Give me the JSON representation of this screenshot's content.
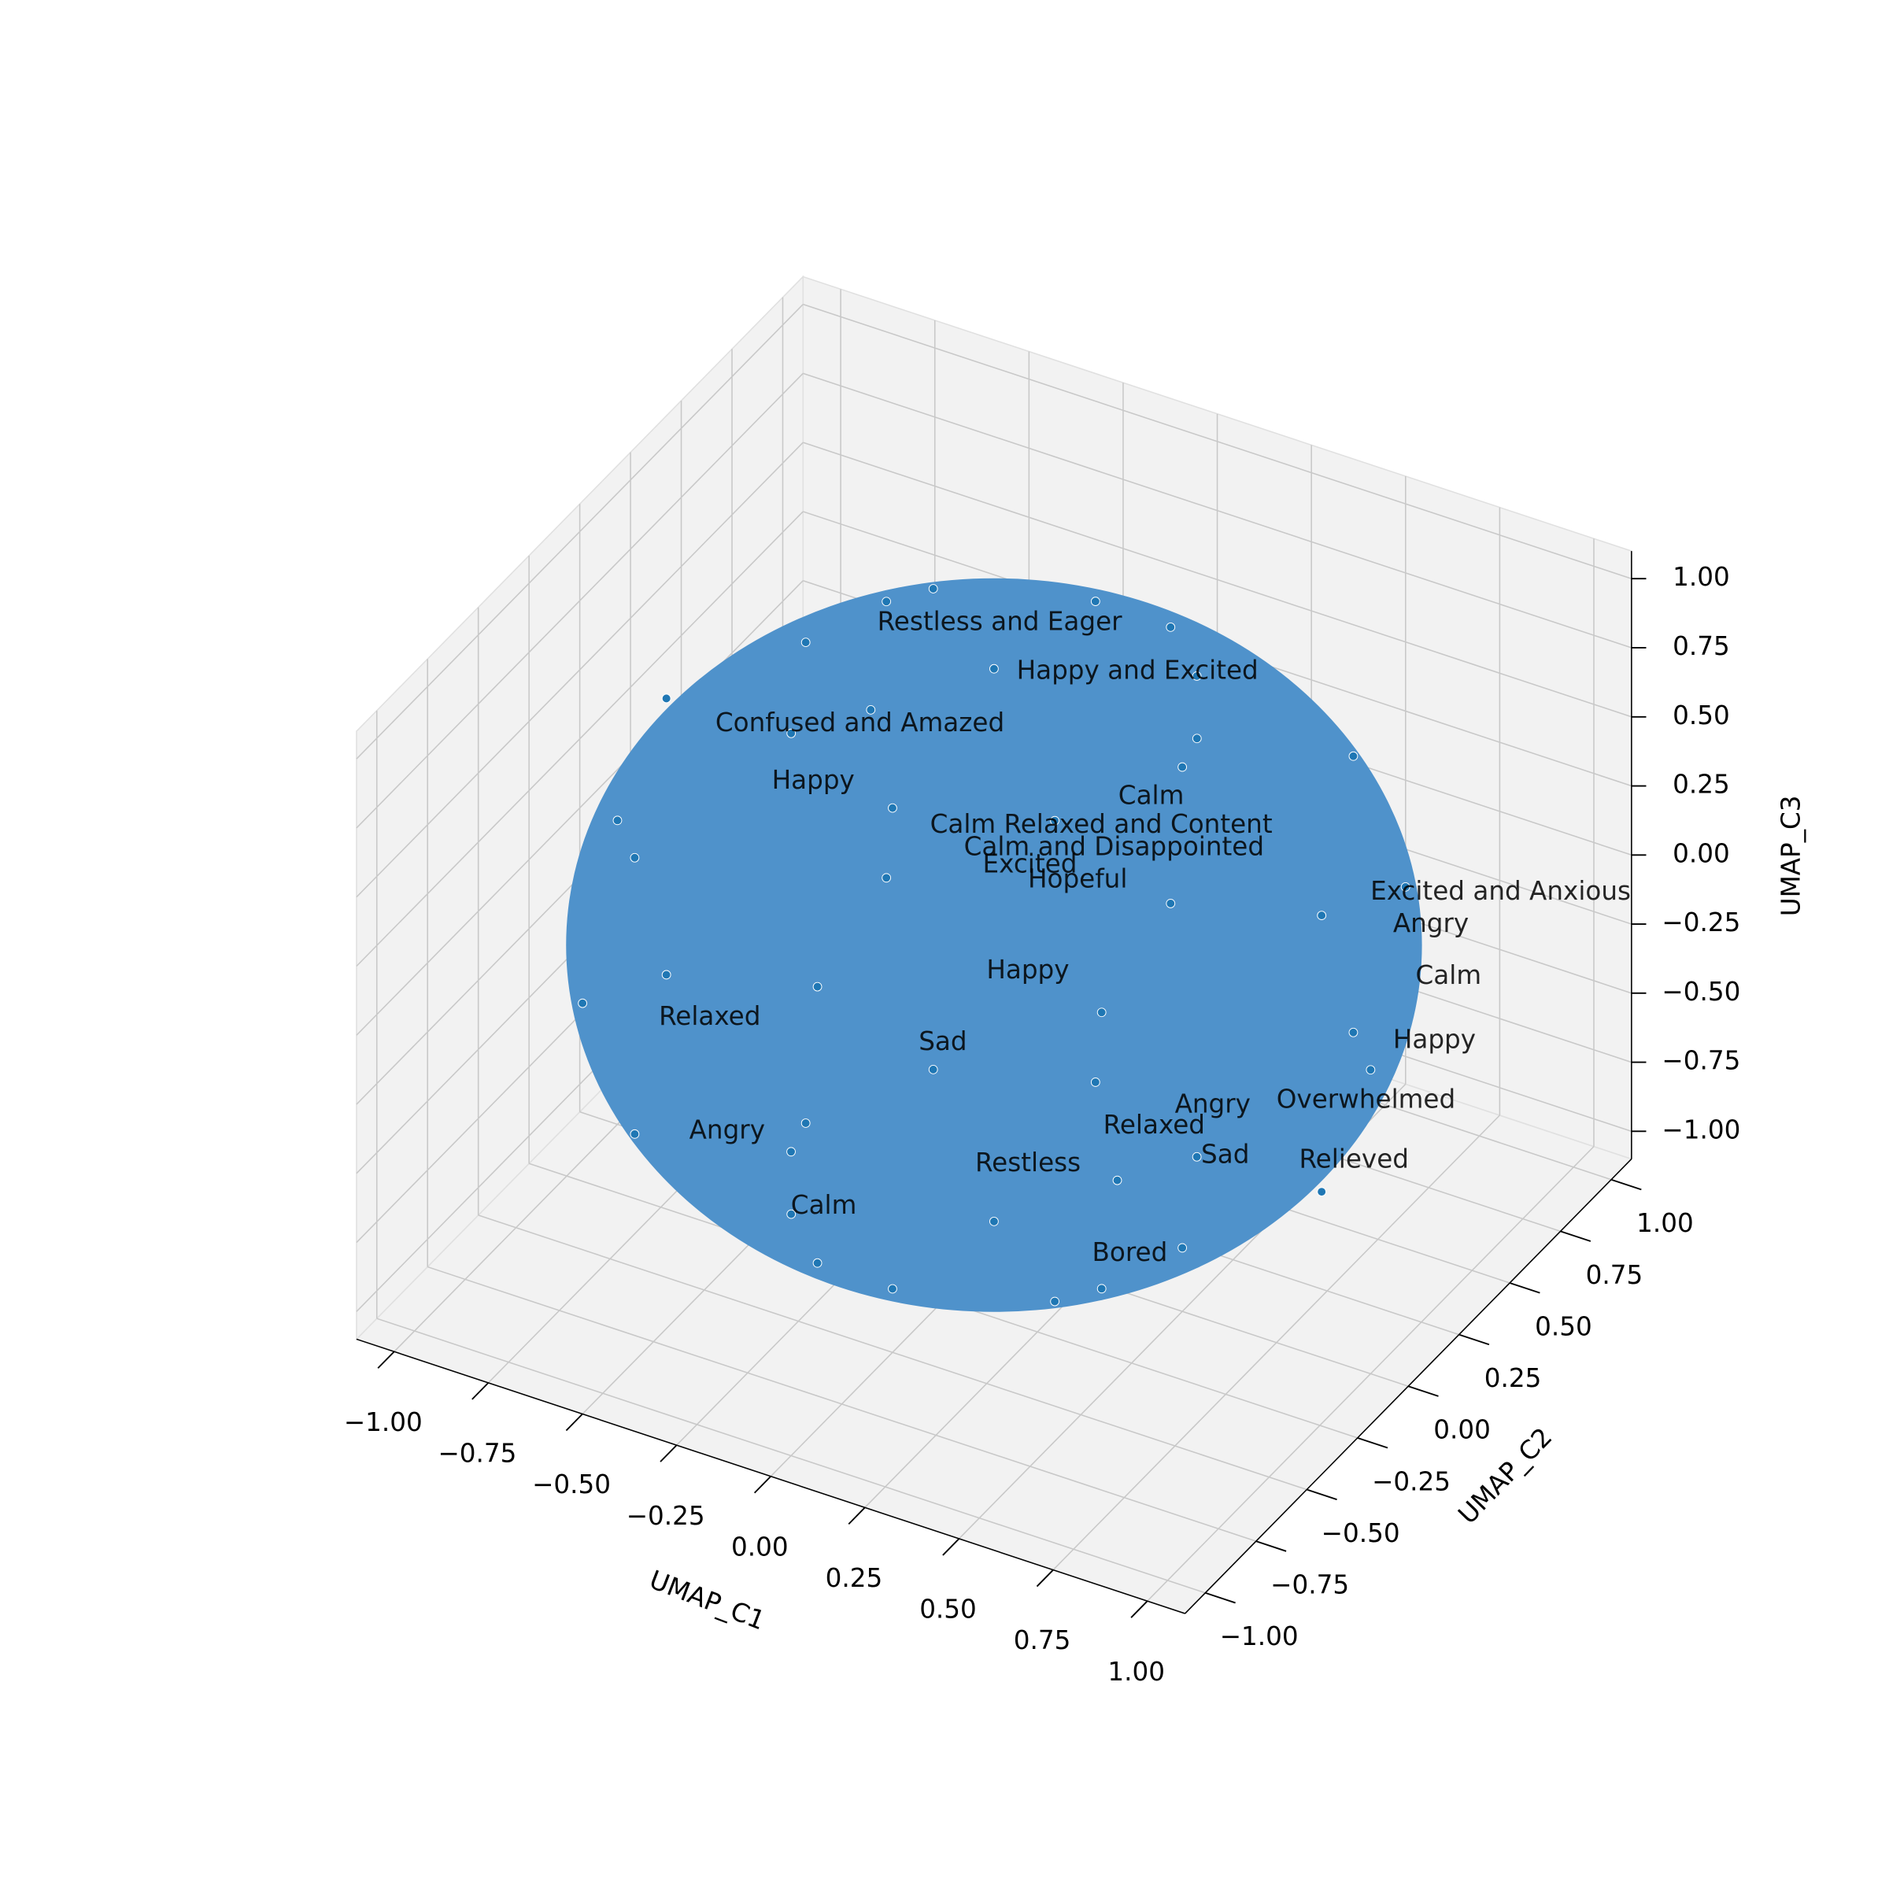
{
  "chart_data": {
    "type": "scatter3d",
    "xlabel": "UMAP_C1",
    "ylabel": "UMAP_C2",
    "zlabel": "UMAP_C3",
    "color": "#1f77b4",
    "grid": true,
    "xlim": [
      -1.1,
      1.1
    ],
    "ylim": [
      -1.1,
      1.1
    ],
    "zlim": [
      -1.1,
      1.1
    ],
    "xticks": [
      {
        "value": -1,
        "label": "−1.00"
      },
      {
        "value": -0.75,
        "label": "−0.75"
      },
      {
        "value": -0.5,
        "label": "−0.50"
      },
      {
        "value": -0.25,
        "label": "−0.25"
      },
      {
        "value": 0,
        "label": "0.00"
      },
      0.25,
      {
        "value": 0.5,
        "label": "0.50"
      },
      0.75,
      {
        "value": 1,
        "label": "1.00"
      }
    ],
    "yticks": [
      {
        "value": -1,
        "label": "−1.00"
      },
      {
        "value": -0.75,
        "label": "−0.75"
      },
      {
        "value": -0.5,
        "label": "−0.50"
      },
      {
        "value": -0.25,
        "label": "−0.25"
      },
      {
        "value": 0,
        "label": "0.00"
      },
      0.25,
      {
        "value": 0.5,
        "label": "0.50"
      },
      0.75,
      {
        "value": 1,
        "label": "1.00"
      }
    ],
    "zticks": [
      {
        "value": -1,
        "label": "−1.00"
      },
      {
        "value": -0.75,
        "label": "−0.75"
      },
      {
        "value": -0.5,
        "label": "−0.50"
      },
      {
        "value": -0.25,
        "label": "−0.25"
      },
      {
        "value": 0,
        "label": "0.00"
      },
      0.25,
      {
        "value": 0.5,
        "label": "0.50"
      },
      0.75,
      {
        "value": 1,
        "label": "1.00"
      }
    ],
    "x": [
      1,
      0.71,
      0,
      -0.71,
      -1,
      -0.71,
      0,
      0.71,
      0.87,
      0.62,
      0,
      -0.62,
      -0.87,
      -0.62,
      0,
      0.62,
      0.87,
      0.62,
      0,
      -0.62,
      -0.87,
      -0.62,
      0,
      0.62,
      0.5,
      0.35,
      0,
      -0.35,
      -0.5,
      -0.35,
      0,
      0.35,
      0.5,
      0.35,
      0,
      -0.35,
      -0.5,
      -0.35,
      0,
      0.35,
      0,
      0
    ],
    "y": [
      0,
      0.71,
      1,
      0.71,
      0,
      -0.71,
      -1,
      -0.71,
      0,
      0.62,
      0.87,
      0.62,
      0,
      -0.62,
      -0.87,
      -0.62,
      0,
      0.62,
      0.87,
      0.62,
      0,
      -0.62,
      -0.87,
      -0.62,
      0,
      0.35,
      0.5,
      0.35,
      0,
      -0.35,
      -0.5,
      -0.35,
      0,
      0.35,
      0.5,
      0.35,
      0,
      -0.35,
      -0.5,
      -0.35,
      0,
      0
    ],
    "z": [
      0,
      0,
      0,
      0,
      0,
      0,
      0,
      0,
      0.5,
      0.5,
      0.5,
      0.5,
      0.5,
      0.5,
      0.5,
      0.5,
      -0.5,
      -0.5,
      -0.5,
      -0.5,
      -0.5,
      -0.5,
      -0.5,
      -0.5,
      0.87,
      0.87,
      0.87,
      0.87,
      0.87,
      0.87,
      0.87,
      0.87,
      -0.87,
      -0.87,
      -0.87,
      -0.87,
      -0.87,
      -0.87,
      -0.87,
      -0.87,
      1,
      -1
    ],
    "annotations": [
      {
        "text": "Happy and Excited",
        "x": 0.06,
        "y": 0,
        "z": 0.99
      },
      {
        "text": "Confused and Amazed",
        "x": -0.74,
        "y": 0,
        "z": 0.44
      },
      {
        "text": "Relaxed",
        "x": -0.89,
        "y": 0,
        "z": -0.69
      },
      {
        "text": "Sad",
        "x": -0.2,
        "y": 0,
        "z": -0.47
      },
      {
        "text": "Happy",
        "x": -0.02,
        "y": 0,
        "z": -0.13
      },
      {
        "text": "Angry",
        "x": -0.54,
        "y": -0.5,
        "z": -0.57
      },
      {
        "text": "Calm",
        "x": -0.27,
        "y": -0.5,
        "z": -0.72
      },
      {
        "text": "Relieved",
        "x": 0.81,
        "y": 0,
        "z": -0.44
      },
      {
        "text": "Overwhelmed",
        "x": 0.75,
        "y": 0,
        "z": -0.25
      },
      {
        "text": "Calm",
        "x": 0.85,
        "y": 0.5,
        "z": -0.13
      },
      {
        "text": "Excited and Anxious",
        "x": 0.73,
        "y": 0.5,
        "z": 0.12
      },
      {
        "text": "Happy",
        "x": 0.79,
        "y": 0.5,
        "z": -0.39
      },
      {
        "text": "Calm",
        "x": 0.33,
        "y": 0,
        "z": 0.66
      },
      {
        "text": "Relaxed",
        "x": 0.29,
        "y": 0,
        "z": -0.55
      },
      {
        "text": "Restless",
        "x": -0.05,
        "y": 0,
        "z": -0.84
      },
      {
        "text": "Bored",
        "x": 0.53,
        "y": -0.5,
        "z": -0.53
      },
      {
        "text": "Restless and Eager",
        "x": -0.31,
        "y": 0,
        "z": 1
      },
      {
        "text": "Calm Relaxed and Content",
        "x": -0.17,
        "y": 0,
        "z": 0.33
      },
      {
        "text": "Calm and Disappointed",
        "x": -0.08,
        "y": 0,
        "z": 0.29
      },
      {
        "text": "Angry",
        "x": 0.48,
        "y": 0,
        "z": -0.39
      },
      {
        "text": "Hopeful",
        "x": 0.09,
        "y": 0,
        "z": 0.25
      },
      {
        "text": "Angry",
        "x": 0.79,
        "y": 0.5,
        "z": 0.03
      },
      {
        "text": "Sad",
        "x": 0.55,
        "y": 0,
        "z": -0.54
      },
      {
        "text": "Happy",
        "x": -0.59,
        "y": 0,
        "z": 0.3
      },
      {
        "text": "Excited",
        "x": -0.03,
        "y": 0,
        "z": 0.25
      }
    ]
  }
}
